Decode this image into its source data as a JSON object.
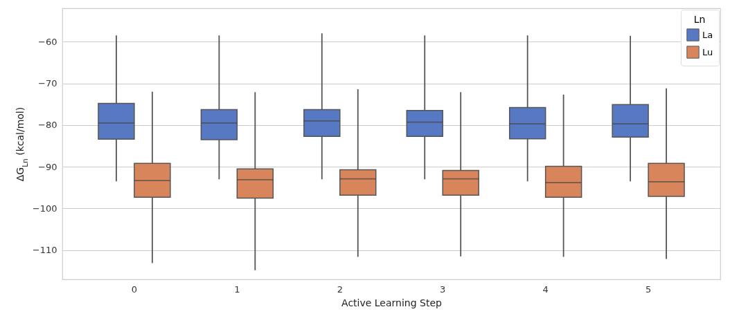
{
  "chart_data": {
    "type": "box",
    "xlabel": "Active Learning Step",
    "ylabel": "ΔG$_{Ln}$ (kcal/mol)",
    "legend_title": "Ln",
    "legend": "top right",
    "grid": "y",
    "categories": [
      "0",
      "1",
      "2",
      "3",
      "4",
      "5"
    ],
    "ylim": [
      -117,
      -52
    ],
    "yticks": [
      -110,
      -100,
      -90,
      -80,
      -70,
      -60
    ],
    "series": [
      {
        "name": "La",
        "color": "#5778c2",
        "boxes": [
          {
            "low": -93.5,
            "q1": -83.4,
            "median": -79.5,
            "q3": -74.8,
            "high": -58.5
          },
          {
            "low": -93,
            "q1": -83.5,
            "median": -79.5,
            "q3": -76.3,
            "high": -58.5
          },
          {
            "low": -93,
            "q1": -82.7,
            "median": -79,
            "q3": -76.3,
            "high": -58
          },
          {
            "low": -93,
            "q1": -82.7,
            "median": -79.3,
            "q3": -76.5,
            "high": -58.5
          },
          {
            "low": -93.5,
            "q1": -83.3,
            "median": -79.7,
            "q3": -75.8,
            "high": -58.5
          },
          {
            "low": -93.5,
            "q1": -82.9,
            "median": -79.7,
            "q3": -75.1,
            "high": -58.6
          }
        ]
      },
      {
        "name": "Lu",
        "color": "#d8855b",
        "boxes": [
          {
            "low": -113.1,
            "q1": -97.3,
            "median": -93.3,
            "q3": -89.2,
            "high": -72
          },
          {
            "low": -114.8,
            "q1": -97.5,
            "median": -93.1,
            "q3": -90.5,
            "high": -72.1
          },
          {
            "low": -111.6,
            "q1": -96.8,
            "median": -92.9,
            "q3": -90.7,
            "high": -71.4
          },
          {
            "low": -111.5,
            "q1": -96.8,
            "median": -92.9,
            "q3": -90.9,
            "high": -72.1
          },
          {
            "low": -111.6,
            "q1": -97.3,
            "median": -93.8,
            "q3": -89.9,
            "high": -72.7
          },
          {
            "low": -112.1,
            "q1": -97.1,
            "median": -93.6,
            "q3": -89.2,
            "high": -71.2
          }
        ]
      }
    ]
  }
}
